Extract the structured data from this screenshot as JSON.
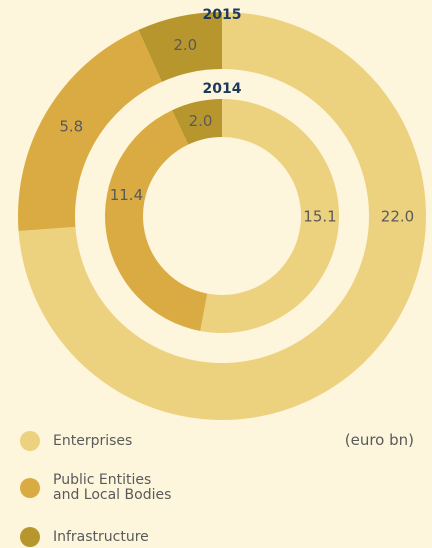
{
  "chart_data": {
    "type": "donut",
    "categories": [
      "Enterprises",
      "Public Entities and Local Bodies",
      "Infrastructure"
    ],
    "colors": [
      "#ecd27f",
      "#d9ab42",
      "#b8962e"
    ],
    "unit": "(euro bn)",
    "rings": [
      {
        "name": "2015",
        "values": [
          22.0,
          5.8,
          2.0
        ],
        "value_labels": [
          "22.0",
          "5.8",
          "2.0"
        ]
      },
      {
        "name": "2014",
        "values": [
          15.1,
          11.4,
          2.0
        ],
        "value_labels": [
          "15.1",
          "11.4",
          "2.0"
        ]
      }
    ]
  }
}
